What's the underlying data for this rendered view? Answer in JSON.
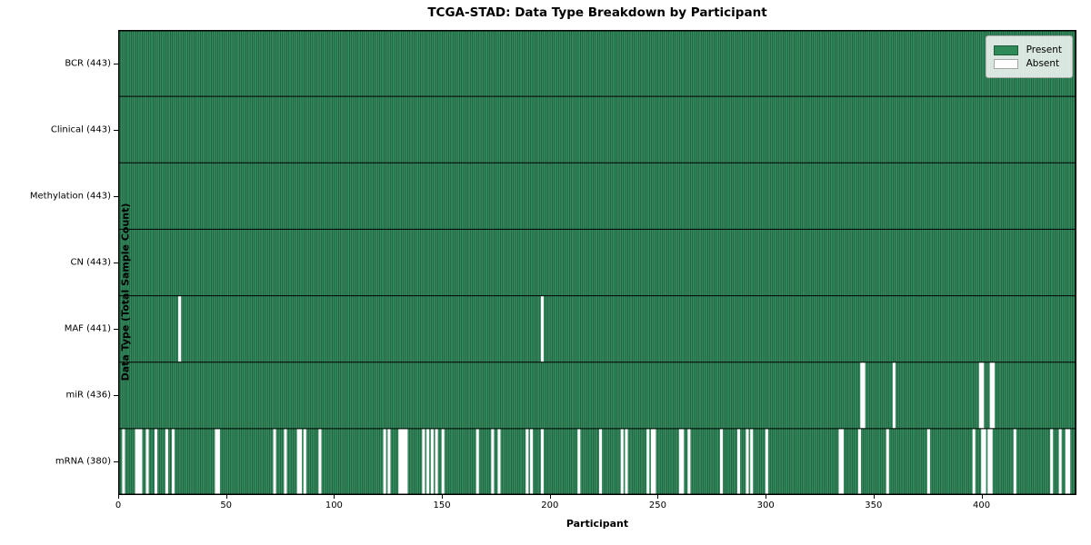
{
  "chart_data": {
    "type": "heatmap",
    "title": "TCGA-STAD: Data Type Breakdown by Participant",
    "xlabel": "Participant",
    "ylabel": "Data Type (Total Sample Count)",
    "x_ticks": [
      0,
      50,
      100,
      150,
      200,
      250,
      300,
      350,
      400
    ],
    "x_range": [
      0,
      444
    ],
    "n_participants": 443,
    "grid": false,
    "legend_position": "upper right",
    "legend": [
      {
        "label": "Present",
        "color": "#2e8b57"
      },
      {
        "label": "Absent",
        "color": "#ffffff"
      }
    ],
    "colors": {
      "present": "#338b5e",
      "bar_edge": "#17432a",
      "absent": "#ffffff",
      "row_separator": "#000000",
      "plot_border": "#000000"
    },
    "rows": [
      {
        "label": "BCR (443)",
        "data_type": "BCR",
        "total": 443,
        "absent_participants": []
      },
      {
        "label": "Clinical (443)",
        "data_type": "Clinical",
        "total": 443,
        "absent_participants": []
      },
      {
        "label": "Methylation (443)",
        "data_type": "Methylation",
        "total": 443,
        "absent_participants": []
      },
      {
        "label": "CN (443)",
        "data_type": "CN",
        "total": 443,
        "absent_participants": []
      },
      {
        "label": "MAF (441)",
        "data_type": "MAF",
        "total": 441,
        "absent_participants": [
          28,
          196
        ]
      },
      {
        "label": "miR (436)",
        "data_type": "miR",
        "total": 436,
        "absent_participants": [
          344,
          345,
          359,
          399,
          400,
          404,
          405
        ]
      },
      {
        "label": "mRNA (380)",
        "data_type": "mRNA",
        "total": 380,
        "absent_participants": [
          2,
          8,
          9,
          10,
          13,
          17,
          22,
          25,
          45,
          46,
          72,
          77,
          83,
          84,
          86,
          93,
          123,
          125,
          130,
          131,
          132,
          133,
          141,
          143,
          145,
          147,
          150,
          166,
          173,
          176,
          189,
          191,
          196,
          213,
          223,
          233,
          235,
          245,
          247,
          248,
          260,
          261,
          264,
          279,
          287,
          291,
          293,
          300,
          334,
          335,
          343,
          356,
          375,
          396,
          400,
          401,
          403,
          404,
          415,
          432,
          436,
          439,
          440
        ]
      }
    ]
  }
}
